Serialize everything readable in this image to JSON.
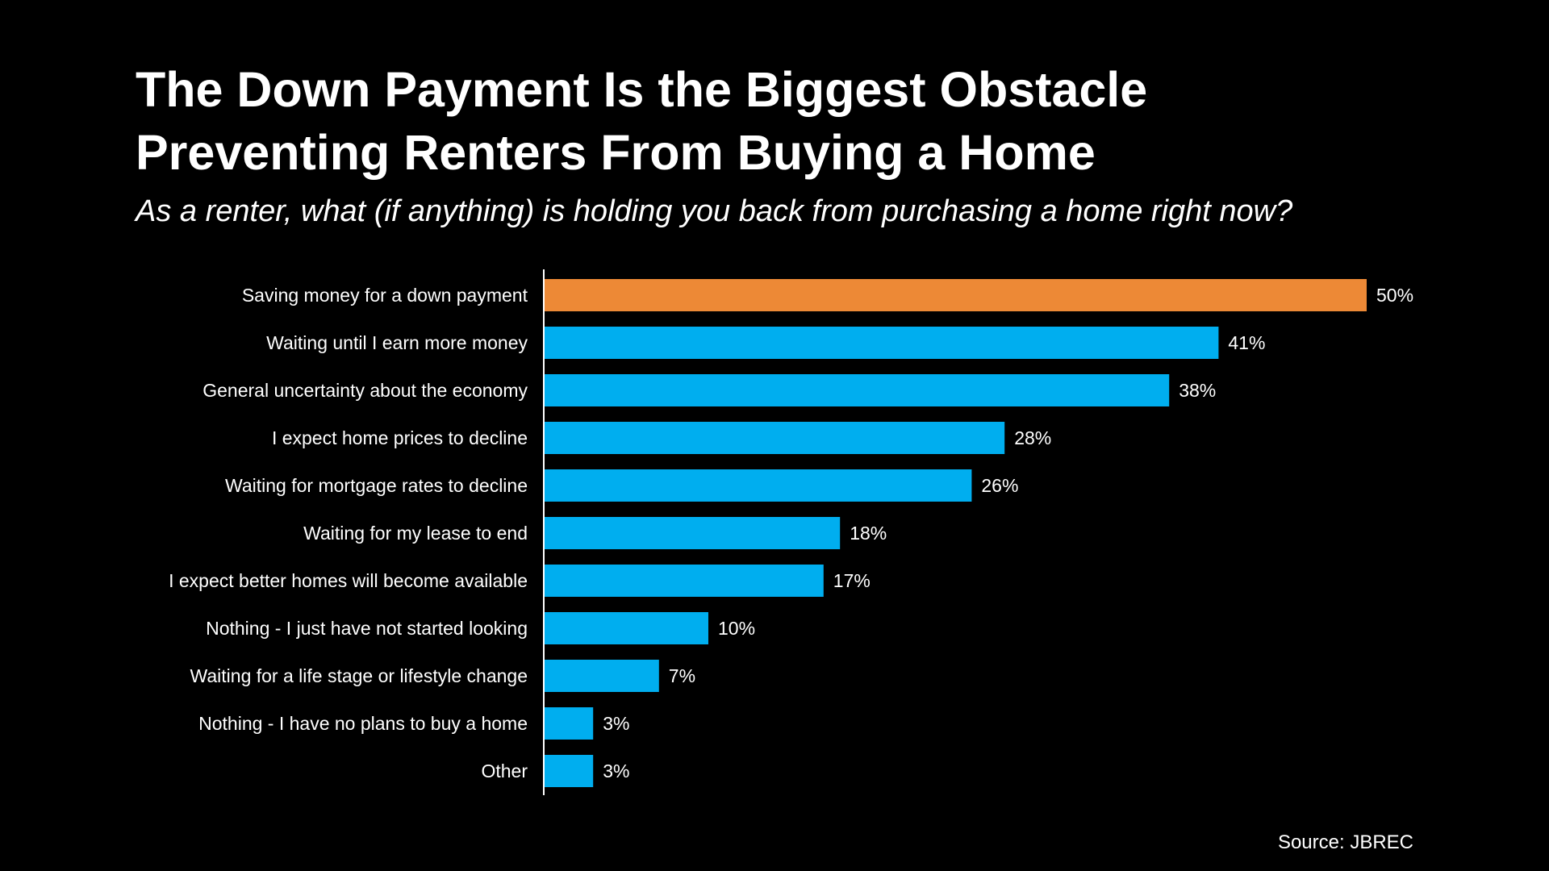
{
  "header": {
    "title_line1": "The Down Payment Is the Biggest Obstacle",
    "title_line2": "Preventing Renters From Buying a Home",
    "subtitle": "As a renter, what (if anything) is holding you back from purchasing a home right now?"
  },
  "source": "Source: JBREC",
  "colors": {
    "background": "#000000",
    "highlight": "#ED8936",
    "bar": "#00AEEF",
    "text": "#FFFFFF"
  },
  "chart_data": {
    "type": "bar",
    "orientation": "horizontal",
    "title": "The Down Payment Is the Biggest Obstacle Preventing Renters From Buying a Home",
    "subtitle": "As a renter, what (if anything) is holding you back from purchasing a home right now?",
    "categories": [
      "Saving money for a down payment",
      "Waiting until I earn more money",
      "General uncertainty about the economy",
      "I expect home prices to decline",
      "Waiting for mortgage rates to decline",
      "Waiting for my lease to end",
      "I expect better homes will become available",
      "Nothing - I just have not started looking",
      "Waiting for a life stage or lifestyle change",
      "Nothing - I have no plans to buy a home",
      "Other"
    ],
    "values": [
      50,
      41,
      38,
      28,
      26,
      18,
      17,
      10,
      7,
      3,
      3
    ],
    "value_labels": [
      "50%",
      "41%",
      "38%",
      "28%",
      "26%",
      "18%",
      "17%",
      "10%",
      "7%",
      "3%",
      "3%"
    ],
    "unit": "%",
    "highlight_index": 0,
    "xlim": [
      0,
      50
    ],
    "grid": false,
    "legend": "none",
    "xlabel": "",
    "ylabel": ""
  }
}
